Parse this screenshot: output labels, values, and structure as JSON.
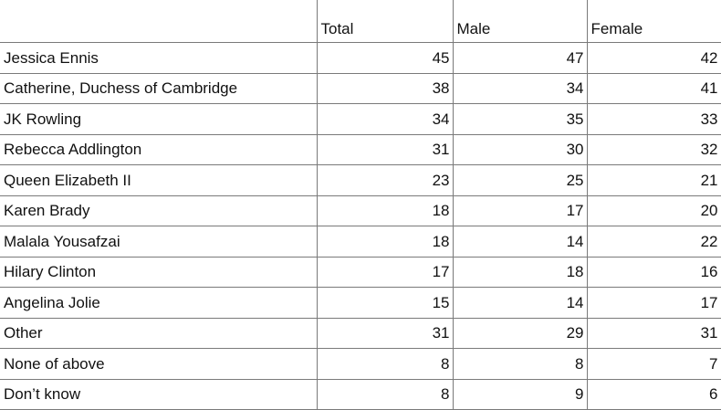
{
  "table": {
    "headers": {
      "name": "",
      "total": "Total",
      "male": "Male",
      "female": "Female"
    },
    "rows": [
      {
        "name": "Jessica Ennis",
        "total": "45",
        "male": "47",
        "female": "42"
      },
      {
        "name": "Catherine, Duchess of Cambridge",
        "total": "38",
        "male": "34",
        "female": "41"
      },
      {
        "name": "JK Rowling",
        "total": "34",
        "male": "35",
        "female": "33"
      },
      {
        "name": "Rebecca Addlington",
        "total": "31",
        "male": "30",
        "female": "32"
      },
      {
        "name": "Queen Elizabeth II",
        "total": "23",
        "male": "25",
        "female": "21"
      },
      {
        "name": "Karen Brady",
        "total": "18",
        "male": "17",
        "female": "20"
      },
      {
        "name": "Malala Yousafzai",
        "total": "18",
        "male": "14",
        "female": "22"
      },
      {
        "name": "Hilary Clinton",
        "total": "17",
        "male": "18",
        "female": "16"
      },
      {
        "name": "Angelina Jolie",
        "total": "15",
        "male": "14",
        "female": "17"
      },
      {
        "name": "Other",
        "total": "31",
        "male": "29",
        "female": "31"
      },
      {
        "name": "None of above",
        "total": "8",
        "male": "8",
        "female": "7"
      },
      {
        "name": "Don’t know",
        "total": "8",
        "male": "9",
        "female": "6"
      }
    ]
  }
}
